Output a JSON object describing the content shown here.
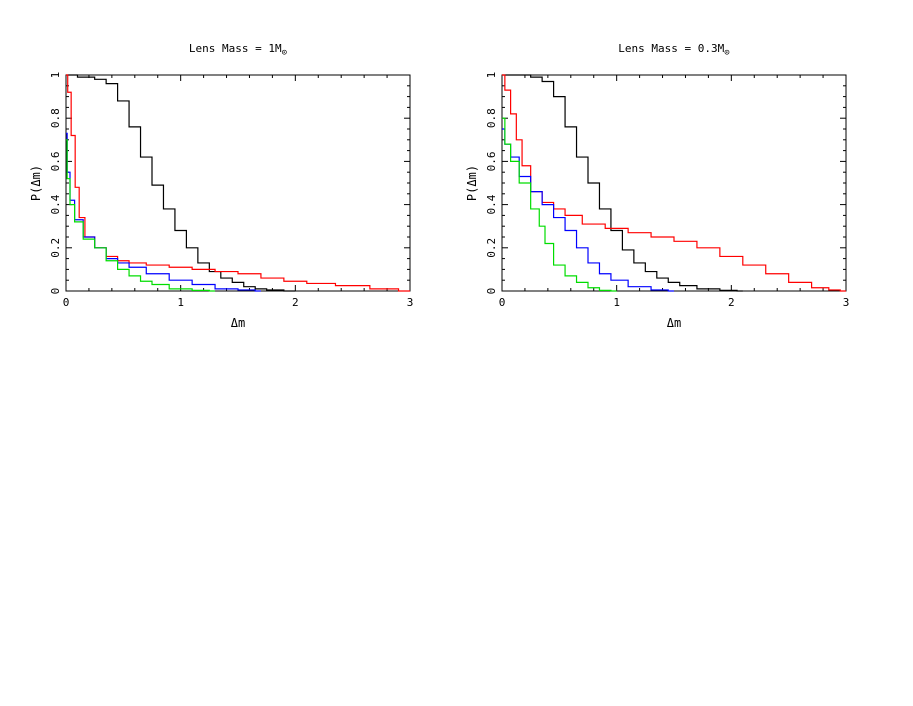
{
  "chart_data": [
    {
      "type": "line",
      "title": "Lens Mass = 1M",
      "title_subscript": "⊙",
      "xlabel": "Δm",
      "ylabel": "P(Δm)",
      "xlim": [
        0,
        3
      ],
      "ylim": [
        0,
        1
      ],
      "xticks": [
        0,
        1,
        2,
        3
      ],
      "xtick_labels": [
        "0",
        "1",
        "2",
        "3"
      ],
      "yticks": [
        0,
        0.2,
        0.4,
        0.6,
        0.8,
        1
      ],
      "ytick_labels": [
        "0",
        "0.2",
        "0.4",
        "0.6",
        "0.8",
        "1"
      ],
      "grid": false,
      "series": [
        {
          "color": "#000000",
          "x": [
            0,
            0.2,
            0.3,
            0.4,
            0.5,
            0.6,
            0.7,
            0.8,
            0.9,
            1.0,
            1.1,
            1.2,
            1.3,
            1.4,
            1.5,
            1.6,
            1.7,
            1.8,
            2.0
          ],
          "y": [
            1.0,
            0.99,
            0.98,
            0.96,
            0.88,
            0.76,
            0.62,
            0.49,
            0.38,
            0.28,
            0.2,
            0.13,
            0.09,
            0.06,
            0.04,
            0.02,
            0.01,
            0.005,
            0.0
          ]
        },
        {
          "color": "#ff0000",
          "x": [
            0,
            0.03,
            0.06,
            0.1,
            0.13,
            0.2,
            0.3,
            0.4,
            0.5,
            0.6,
            0.8,
            1.0,
            1.2,
            1.4,
            1.6,
            1.8,
            2.0,
            2.2,
            2.5,
            2.8,
            3.0
          ],
          "y": [
            1.0,
            0.92,
            0.72,
            0.48,
            0.34,
            0.25,
            0.2,
            0.16,
            0.14,
            0.13,
            0.12,
            0.11,
            0.1,
            0.09,
            0.08,
            0.06,
            0.045,
            0.035,
            0.025,
            0.01,
            0.0
          ]
        },
        {
          "color": "#0000ff",
          "x": [
            0,
            0.02,
            0.05,
            0.1,
            0.2,
            0.3,
            0.4,
            0.5,
            0.6,
            0.8,
            1.0,
            1.2,
            1.4,
            1.6,
            1.7
          ],
          "y": [
            0.73,
            0.55,
            0.42,
            0.33,
            0.25,
            0.2,
            0.15,
            0.13,
            0.11,
            0.08,
            0.05,
            0.03,
            0.01,
            0.005,
            0.0
          ]
        },
        {
          "color": "#00dd00",
          "x": [
            0,
            0.02,
            0.05,
            0.1,
            0.2,
            0.3,
            0.4,
            0.5,
            0.6,
            0.7,
            0.8,
            1.0,
            1.2,
            1.3
          ],
          "y": [
            0.7,
            0.52,
            0.4,
            0.32,
            0.24,
            0.2,
            0.14,
            0.1,
            0.07,
            0.045,
            0.03,
            0.01,
            0.003,
            0.0
          ]
        }
      ]
    },
    {
      "type": "line",
      "title": "Lens Mass = 0.3M",
      "title_subscript": "⊙",
      "xlabel": "Δm",
      "ylabel": "P(Δm)",
      "xlim": [
        0,
        3
      ],
      "ylim": [
        0,
        1
      ],
      "xticks": [
        0,
        1,
        2,
        3
      ],
      "xtick_labels": [
        "0",
        "1",
        "2",
        "3"
      ],
      "yticks": [
        0,
        0.2,
        0.4,
        0.6,
        0.8,
        1
      ],
      "ytick_labels": [
        "0",
        "0.2",
        "0.4",
        "0.6",
        "0.8",
        "1"
      ],
      "grid": false,
      "series": [
        {
          "color": "#000000",
          "x": [
            0,
            0.2,
            0.3,
            0.4,
            0.5,
            0.6,
            0.7,
            0.8,
            0.9,
            1.0,
            1.1,
            1.2,
            1.3,
            1.4,
            1.5,
            1.6,
            1.8,
            2.0,
            2.1
          ],
          "y": [
            1.0,
            1.0,
            0.99,
            0.97,
            0.9,
            0.76,
            0.62,
            0.5,
            0.38,
            0.28,
            0.19,
            0.13,
            0.09,
            0.06,
            0.04,
            0.025,
            0.01,
            0.003,
            0.0
          ]
        },
        {
          "color": "#ff0000",
          "x": [
            0,
            0.05,
            0.1,
            0.15,
            0.2,
            0.3,
            0.4,
            0.5,
            0.6,
            0.8,
            1.0,
            1.2,
            1.4,
            1.6,
            1.8,
            2.0,
            2.2,
            2.4,
            2.6,
            2.8,
            2.9,
            3.0
          ],
          "y": [
            1.0,
            0.93,
            0.82,
            0.7,
            0.58,
            0.46,
            0.41,
            0.38,
            0.35,
            0.31,
            0.29,
            0.27,
            0.25,
            0.23,
            0.2,
            0.16,
            0.12,
            0.08,
            0.04,
            0.015,
            0.005,
            0.0
          ]
        },
        {
          "color": "#0000ff",
          "x": [
            0,
            0.05,
            0.1,
            0.2,
            0.3,
            0.4,
            0.5,
            0.6,
            0.7,
            0.8,
            0.9,
            1.0,
            1.2,
            1.4,
            1.5
          ],
          "y": [
            0.75,
            0.68,
            0.62,
            0.53,
            0.46,
            0.4,
            0.34,
            0.28,
            0.2,
            0.13,
            0.08,
            0.05,
            0.02,
            0.005,
            0.0
          ]
        },
        {
          "color": "#00dd00",
          "x": [
            0,
            0.05,
            0.1,
            0.2,
            0.3,
            0.35,
            0.4,
            0.5,
            0.6,
            0.7,
            0.8,
            0.9,
            1.0
          ],
          "y": [
            0.8,
            0.68,
            0.6,
            0.5,
            0.38,
            0.3,
            0.22,
            0.12,
            0.07,
            0.04,
            0.015,
            0.003,
            0.0
          ]
        }
      ]
    }
  ]
}
